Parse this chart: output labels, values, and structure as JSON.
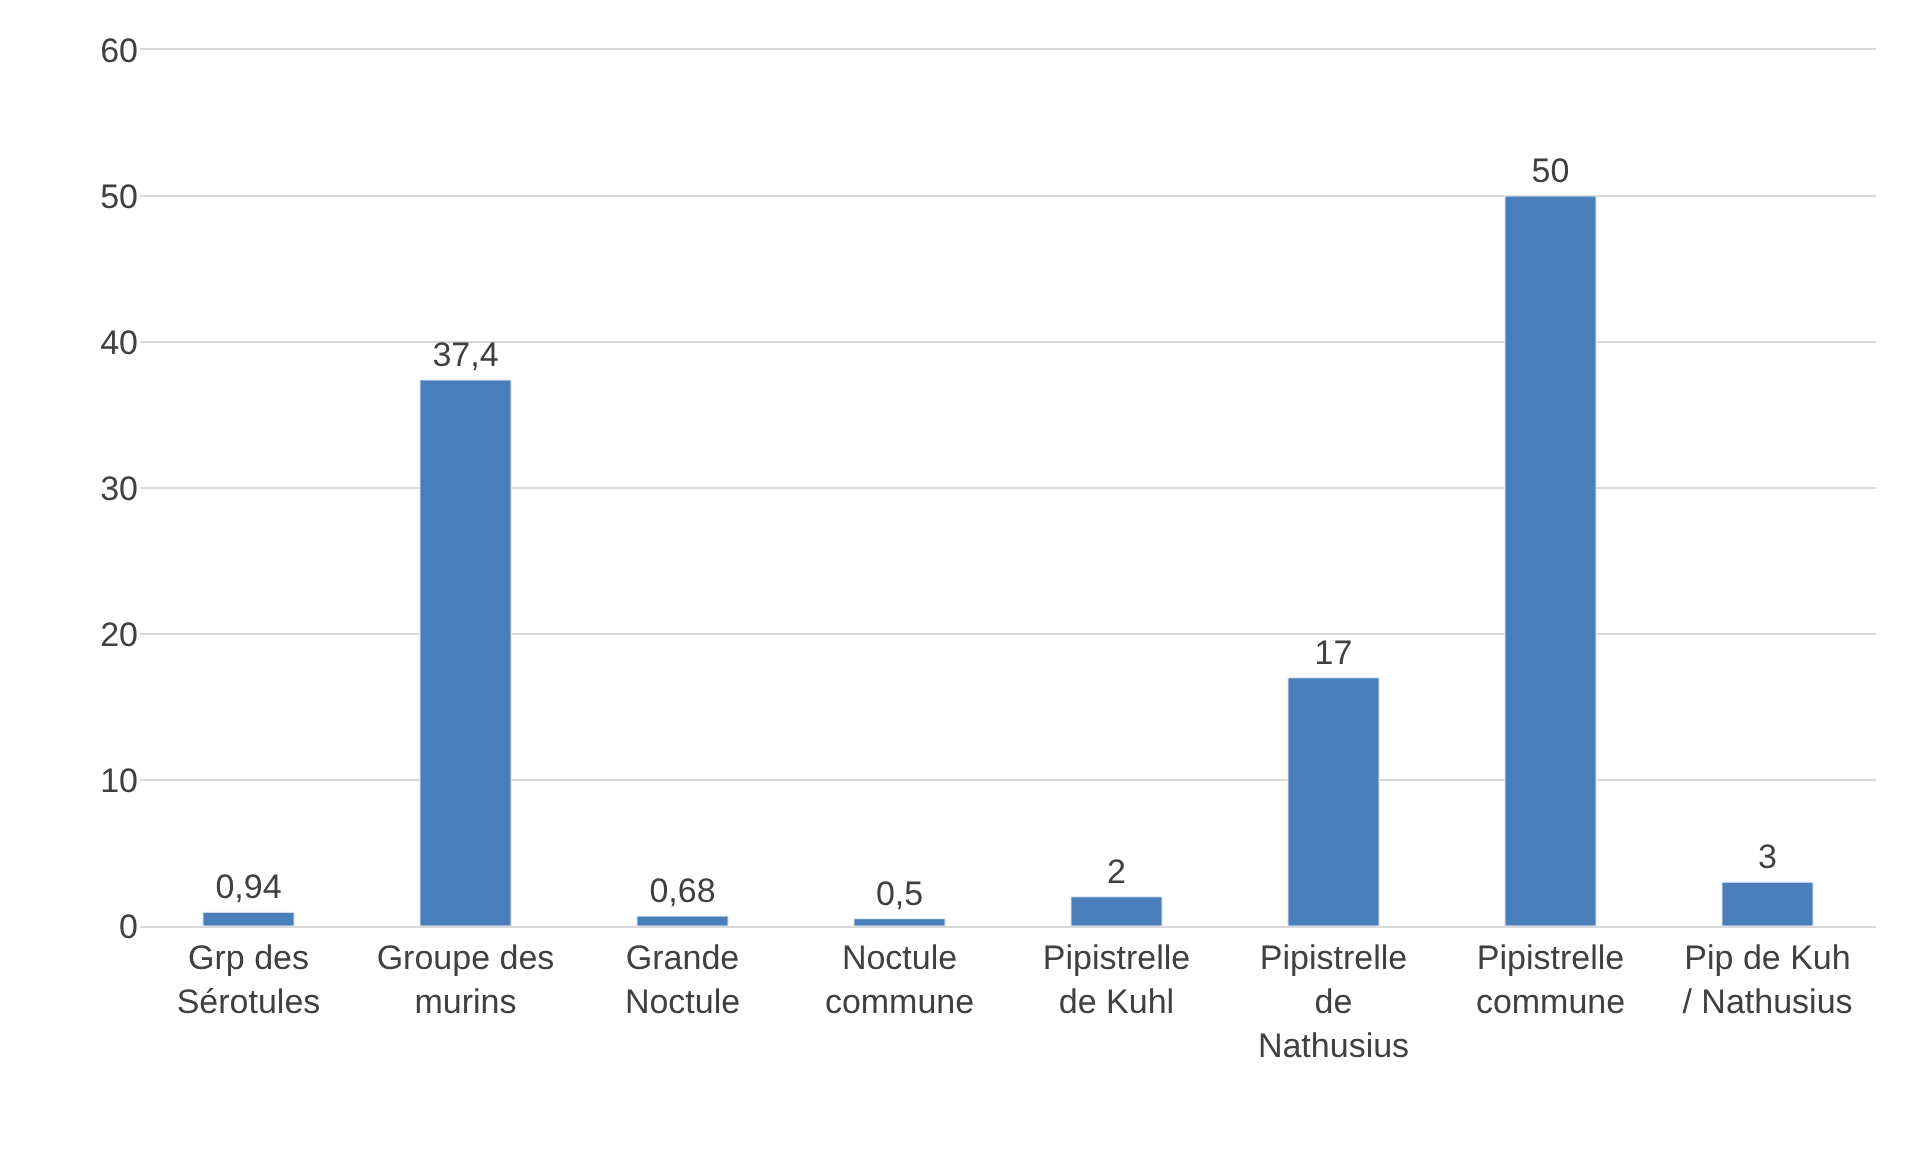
{
  "chart_data": {
    "type": "bar",
    "categories": [
      "Grp des Sérotules",
      "Groupe des murins",
      "Grande Noctule",
      "Noctule commune",
      "Pipistrelle de Kuhl",
      "Pipistrelle de Nathusius",
      "Pipistrelle commune",
      "Pip de Kuh / Nathusius"
    ],
    "values": [
      0.94,
      37.4,
      0.68,
      0.5,
      2,
      17,
      50,
      3
    ],
    "value_labels": [
      "0,94",
      "37,4",
      "0,68",
      "0,5",
      "2",
      "17",
      "50",
      "3"
    ],
    "color": "#4a7ebb",
    "ylim": [
      0,
      60
    ],
    "yticks": [
      0,
      10,
      20,
      30,
      40,
      50,
      60
    ],
    "grid": "y"
  }
}
